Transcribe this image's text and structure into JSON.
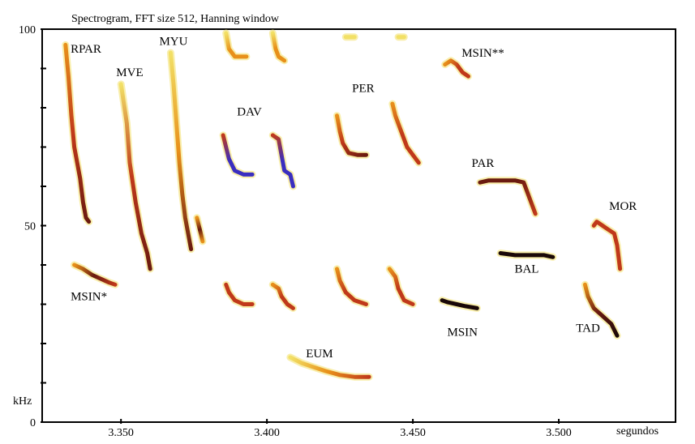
{
  "chart_data": {
    "type": "spectrogram",
    "title": "Spectrogram, FFT size 512, Hanning window",
    "xunit": "segundos",
    "yunit": "kHz",
    "xlim": [
      3.323,
      3.54
    ],
    "ylim": [
      0,
      100
    ],
    "xticks": [
      3.35,
      3.4,
      3.45,
      3.5
    ],
    "xtick_labels": [
      "3.350",
      "3.400",
      "3.450",
      "3.500"
    ],
    "yticks": [
      0,
      50,
      100
    ],
    "ytick_labels": [
      "0",
      "50",
      "100"
    ],
    "colors": {
      "yellow": "#f2e066",
      "orange": "#e8901a",
      "red": "#c0391a",
      "darkred": "#6a1a10",
      "blue": "#3a2ec0",
      "black": "#1a0808"
    },
    "calls": [
      {
        "label": "RPAR",
        "label_t": 3.338,
        "label_f": 94,
        "path": [
          [
            3.331,
            96
          ],
          [
            3.332,
            88
          ],
          [
            3.333,
            78
          ],
          [
            3.334,
            70
          ],
          [
            3.336,
            62
          ],
          [
            3.337,
            56
          ],
          [
            3.338,
            52
          ],
          [
            3.339,
            51
          ]
        ],
        "colors": [
          "orange",
          "red",
          "darkred"
        ]
      },
      {
        "label": "MVE",
        "label_t": 3.353,
        "label_f": 88,
        "path": [
          [
            3.35,
            86
          ],
          [
            3.352,
            76
          ],
          [
            3.353,
            66
          ],
          [
            3.355,
            56
          ],
          [
            3.357,
            48
          ],
          [
            3.359,
            43
          ],
          [
            3.36,
            39
          ]
        ],
        "colors": [
          "yellow",
          "red",
          "darkred"
        ]
      },
      {
        "label": "MYU",
        "label_t": 3.368,
        "label_f": 96,
        "path": [
          [
            3.367,
            94
          ],
          [
            3.368,
            86
          ],
          [
            3.369,
            76
          ],
          [
            3.37,
            66
          ],
          [
            3.371,
            58
          ],
          [
            3.372,
            52
          ],
          [
            3.373,
            48
          ],
          [
            3.374,
            44
          ]
        ],
        "colors": [
          "yellow",
          "orange",
          "darkred"
        ]
      },
      {
        "label": "",
        "label_t": 0,
        "label_f": 0,
        "path": [
          [
            3.376,
            52
          ],
          [
            3.377,
            49
          ],
          [
            3.378,
            46
          ]
        ],
        "colors": [
          "orange",
          "darkred",
          "orange"
        ]
      },
      {
        "label": "MSIN*",
        "label_t": 3.339,
        "label_f": 31,
        "path": [
          [
            3.334,
            40
          ],
          [
            3.337,
            39
          ],
          [
            3.34,
            37.5
          ],
          [
            3.343,
            36.5
          ],
          [
            3.346,
            35.5
          ],
          [
            3.348,
            35
          ]
        ],
        "colors": [
          "orange",
          "darkred",
          "red"
        ]
      },
      {
        "label": "",
        "label_t": 0,
        "label_f": 0,
        "path": [
          [
            3.386,
            99
          ],
          [
            3.387,
            95
          ],
          [
            3.389,
            93
          ],
          [
            3.393,
            93
          ]
        ],
        "colors": [
          "yellow",
          "orange",
          "orange"
        ]
      },
      {
        "label": "",
        "label_t": 0,
        "label_f": 0,
        "path": [
          [
            3.402,
            99
          ],
          [
            3.403,
            95
          ],
          [
            3.404,
            93
          ],
          [
            3.406,
            92
          ]
        ],
        "colors": [
          "yellow",
          "orange",
          "orange"
        ]
      },
      {
        "label": "",
        "label_t": 0,
        "label_f": 0,
        "path": [
          [
            3.427,
            98
          ],
          [
            3.43,
            98
          ]
        ],
        "colors": [
          "yellow",
          "yellow"
        ]
      },
      {
        "label": "",
        "label_t": 0,
        "label_f": 0,
        "path": [
          [
            3.445,
            98
          ],
          [
            3.447,
            98
          ]
        ],
        "colors": [
          "yellow",
          "yellow"
        ]
      },
      {
        "label": "DAV",
        "label_t": 3.394,
        "label_f": 78,
        "path": [
          [
            3.385,
            73
          ],
          [
            3.386,
            70
          ],
          [
            3.387,
            67
          ],
          [
            3.389,
            64
          ],
          [
            3.392,
            63
          ],
          [
            3.395,
            63
          ]
        ],
        "colors": [
          "red",
          "blue",
          "blue"
        ]
      },
      {
        "label": "",
        "label_t": 0,
        "label_f": 0,
        "path": [
          [
            3.402,
            73
          ],
          [
            3.404,
            72
          ],
          [
            3.405,
            68
          ],
          [
            3.406,
            64
          ],
          [
            3.408,
            63
          ],
          [
            3.409,
            60
          ]
        ],
        "colors": [
          "red",
          "blue",
          "blue"
        ]
      },
      {
        "label": "PER",
        "label_t": 3.433,
        "label_f": 84,
        "path": [
          [
            3.424,
            78
          ],
          [
            3.425,
            74
          ],
          [
            3.426,
            71
          ],
          [
            3.428,
            68.5
          ],
          [
            3.431,
            68
          ],
          [
            3.434,
            68
          ]
        ],
        "colors": [
          "orange",
          "red",
          "darkred"
        ]
      },
      {
        "label": "",
        "label_t": 0,
        "label_f": 0,
        "path": [
          [
            3.443,
            81
          ],
          [
            3.444,
            78
          ],
          [
            3.446,
            74
          ],
          [
            3.448,
            70
          ],
          [
            3.45,
            68
          ],
          [
            3.452,
            66
          ]
        ],
        "colors": [
          "orange",
          "red",
          "red"
        ]
      },
      {
        "label": "MSIN**",
        "label_t": 3.474,
        "label_f": 93,
        "path": [
          [
            3.461,
            91
          ],
          [
            3.463,
            92
          ],
          [
            3.465,
            91
          ],
          [
            3.467,
            89
          ],
          [
            3.469,
            88
          ]
        ],
        "colors": [
          "orange",
          "red",
          "red"
        ]
      },
      {
        "label": "PAR",
        "label_t": 3.474,
        "label_f": 65,
        "path": [
          [
            3.473,
            61
          ],
          [
            3.476,
            61.5
          ],
          [
            3.48,
            61.5
          ],
          [
            3.485,
            61.5
          ],
          [
            3.488,
            61
          ],
          [
            3.49,
            57
          ],
          [
            3.492,
            53
          ]
        ],
        "colors": [
          "darkred",
          "darkred",
          "red"
        ]
      },
      {
        "label": "BAL",
        "label_t": 3.489,
        "label_f": 38,
        "path": [
          [
            3.48,
            43
          ],
          [
            3.485,
            42.5
          ],
          [
            3.49,
            42.5
          ],
          [
            3.495,
            42.5
          ],
          [
            3.498,
            42
          ]
        ],
        "colors": [
          "black",
          "black",
          "black"
        ]
      },
      {
        "label": "MSIN",
        "label_t": 3.467,
        "label_f": 22,
        "path": [
          [
            3.46,
            31
          ],
          [
            3.462,
            30.5
          ],
          [
            3.465,
            30
          ],
          [
            3.468,
            29.5
          ],
          [
            3.472,
            29
          ]
        ],
        "colors": [
          "black",
          "black",
          "black"
        ]
      },
      {
        "label": "MOR",
        "label_t": 3.522,
        "label_f": 54,
        "path": [
          [
            3.512,
            50
          ],
          [
            3.513,
            51
          ],
          [
            3.515,
            50
          ],
          [
            3.517,
            49
          ],
          [
            3.519,
            48
          ],
          [
            3.52,
            45
          ],
          [
            3.521,
            39
          ]
        ],
        "colors": [
          "red",
          "red",
          "red"
        ]
      },
      {
        "label": "TAD",
        "label_t": 3.51,
        "label_f": 23,
        "path": [
          [
            3.509,
            35
          ],
          [
            3.51,
            32
          ],
          [
            3.512,
            29
          ],
          [
            3.515,
            27
          ],
          [
            3.518,
            25
          ],
          [
            3.52,
            22
          ]
        ],
        "colors": [
          "orange",
          "darkred",
          "black"
        ]
      },
      {
        "label": "",
        "label_t": 0,
        "label_f": 0,
        "path": [
          [
            3.386,
            35
          ],
          [
            3.387,
            33
          ],
          [
            3.389,
            31
          ],
          [
            3.392,
            30
          ],
          [
            3.395,
            30
          ]
        ],
        "colors": [
          "red",
          "red",
          "red"
        ]
      },
      {
        "label": "",
        "label_t": 0,
        "label_f": 0,
        "path": [
          [
            3.402,
            35
          ],
          [
            3.404,
            34
          ],
          [
            3.405,
            32
          ],
          [
            3.407,
            30
          ],
          [
            3.409,
            29
          ]
        ],
        "colors": [
          "orange",
          "red",
          "red"
        ]
      },
      {
        "label": "",
        "label_t": 0,
        "label_f": 0,
        "path": [
          [
            3.424,
            39
          ],
          [
            3.425,
            36
          ],
          [
            3.427,
            33
          ],
          [
            3.43,
            31
          ],
          [
            3.434,
            30
          ]
        ],
        "colors": [
          "orange",
          "red",
          "red"
        ]
      },
      {
        "label": "",
        "label_t": 0,
        "label_f": 0,
        "path": [
          [
            3.442,
            39
          ],
          [
            3.444,
            37
          ],
          [
            3.445,
            34
          ],
          [
            3.447,
            31
          ],
          [
            3.45,
            30
          ]
        ],
        "colors": [
          "orange",
          "red",
          "red"
        ]
      },
      {
        "label": "EUM",
        "label_t": 3.418,
        "label_f": 16.5,
        "path": [
          [
            3.408,
            16.5
          ],
          [
            3.412,
            15
          ],
          [
            3.416,
            14
          ],
          [
            3.42,
            13
          ],
          [
            3.425,
            12
          ],
          [
            3.43,
            11.5
          ],
          [
            3.435,
            11.5
          ]
        ],
        "colors": [
          "yellow",
          "orange",
          "red"
        ]
      }
    ]
  }
}
